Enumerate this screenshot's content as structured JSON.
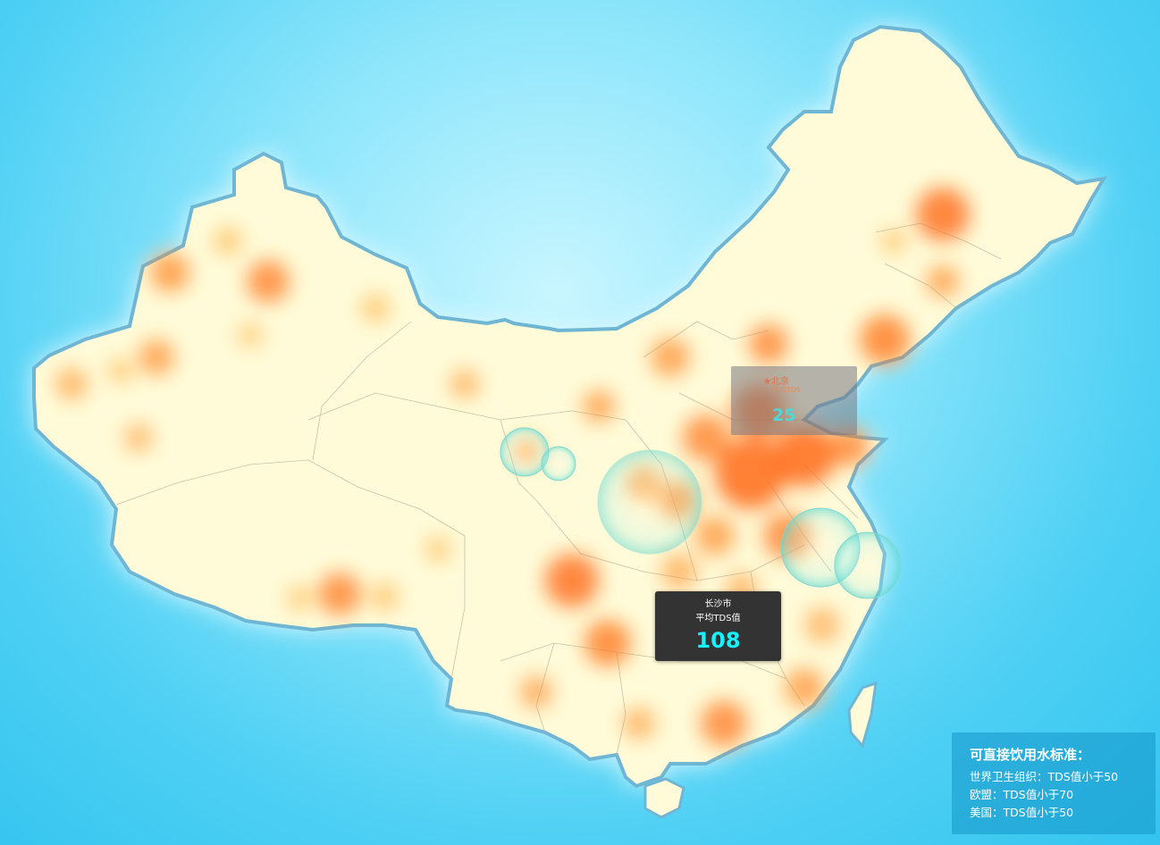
{
  "tooltip": {
    "city": "长沙市",
    "label": "平均TDS值",
    "value": "108"
  },
  "highlight": {
    "city": "★北京",
    "label": "平均TDS",
    "value": "25"
  },
  "legend": {
    "title": "可直接饮用水标准：",
    "rows": [
      "世界卫生组织：TDS值小于50",
      "欧盟：TDS值小于70",
      "美国：TDS值小于50"
    ]
  },
  "colors": {
    "ocean": "#4fd0f4",
    "land": "#fffbd9",
    "heat_low": "#ffd86a",
    "heat_high": "#ff6a18",
    "tooltip_value": "#18f1ff"
  }
}
